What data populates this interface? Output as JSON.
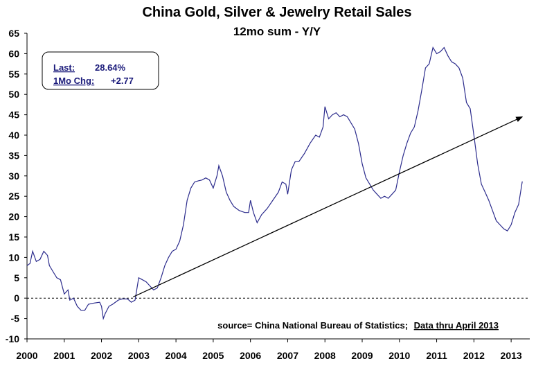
{
  "chart_data": {
    "type": "line",
    "title": "China Gold, Silver & Jewelry Retail Sales",
    "subtitle": "12mo sum - Y/Y",
    "xlabel": "",
    "ylabel": "",
    "xlim": [
      2000,
      2013.5
    ],
    "ylim": [
      -10,
      65
    ],
    "y_ticks": [
      -10,
      -5,
      0,
      5,
      10,
      15,
      20,
      25,
      30,
      35,
      40,
      45,
      50,
      55,
      60,
      65
    ],
    "x_ticks": [
      "2000",
      "2001",
      "2002",
      "2003",
      "2004",
      "2005",
      "2006",
      "2007",
      "2008",
      "2009",
      "2010",
      "2011",
      "2012",
      "2013"
    ],
    "grid": false,
    "reference_line": {
      "y": 0,
      "style": "dashed"
    },
    "trend_arrow": {
      "from": [
        2002.85,
        0.3
      ],
      "to": [
        2013.3,
        44.5
      ]
    },
    "series": [
      {
        "color": "#2b2b8c",
        "points": [
          [
            2000.0,
            8
          ],
          [
            2000.08,
            8.5
          ],
          [
            2000.15,
            11.5
          ],
          [
            2000.25,
            9
          ],
          [
            2000.35,
            9.5
          ],
          [
            2000.45,
            11.5
          ],
          [
            2000.55,
            10.5
          ],
          [
            2000.6,
            8
          ],
          [
            2000.7,
            6.5
          ],
          [
            2000.8,
            5
          ],
          [
            2000.9,
            4.5
          ],
          [
            2001.0,
            1
          ],
          [
            2001.1,
            2
          ],
          [
            2001.15,
            -0.5
          ],
          [
            2001.25,
            0
          ],
          [
            2001.35,
            -2
          ],
          [
            2001.45,
            -3
          ],
          [
            2001.55,
            -3
          ],
          [
            2001.65,
            -1.5
          ],
          [
            2001.8,
            -1.2
          ],
          [
            2001.95,
            -1
          ],
          [
            2002.0,
            -2
          ],
          [
            2002.05,
            -5
          ],
          [
            2002.1,
            -3.8
          ],
          [
            2002.2,
            -2
          ],
          [
            2002.3,
            -1.5
          ],
          [
            2002.45,
            -0.5
          ],
          [
            2002.55,
            -0.2
          ],
          [
            2002.7,
            -0.2
          ],
          [
            2002.8,
            -1
          ],
          [
            2002.9,
            -0.5
          ],
          [
            2003.0,
            5
          ],
          [
            2003.1,
            4.5
          ],
          [
            2003.2,
            4
          ],
          [
            2003.3,
            3
          ],
          [
            2003.4,
            2
          ],
          [
            2003.5,
            2.5
          ],
          [
            2003.6,
            5
          ],
          [
            2003.7,
            8
          ],
          [
            2003.8,
            10
          ],
          [
            2003.9,
            11.5
          ],
          [
            2004.0,
            12
          ],
          [
            2004.1,
            14
          ],
          [
            2004.2,
            18
          ],
          [
            2004.3,
            24
          ],
          [
            2004.4,
            27
          ],
          [
            2004.5,
            28.5
          ],
          [
            2004.6,
            28.8
          ],
          [
            2004.7,
            29
          ],
          [
            2004.8,
            29.5
          ],
          [
            2004.9,
            29
          ],
          [
            2005.0,
            27
          ],
          [
            2005.1,
            30
          ],
          [
            2005.15,
            32.5
          ],
          [
            2005.25,
            30
          ],
          [
            2005.35,
            26
          ],
          [
            2005.45,
            24
          ],
          [
            2005.55,
            22.5
          ],
          [
            2005.7,
            21.5
          ],
          [
            2005.85,
            21
          ],
          [
            2005.95,
            21
          ],
          [
            2006.0,
            24
          ],
          [
            2006.08,
            21
          ],
          [
            2006.18,
            18.5
          ],
          [
            2006.3,
            20.5
          ],
          [
            2006.45,
            22
          ],
          [
            2006.6,
            24
          ],
          [
            2006.75,
            26
          ],
          [
            2006.85,
            28.5
          ],
          [
            2006.95,
            28
          ],
          [
            2007.0,
            25.5
          ],
          [
            2007.1,
            31.5
          ],
          [
            2007.2,
            33.5
          ],
          [
            2007.3,
            33.5
          ],
          [
            2007.45,
            35.5
          ],
          [
            2007.6,
            38
          ],
          [
            2007.75,
            40
          ],
          [
            2007.85,
            39.5
          ],
          [
            2007.95,
            42
          ],
          [
            2008.0,
            47
          ],
          [
            2008.1,
            44
          ],
          [
            2008.2,
            45
          ],
          [
            2008.3,
            45.5
          ],
          [
            2008.4,
            44.5
          ],
          [
            2008.5,
            45
          ],
          [
            2008.6,
            44.5
          ],
          [
            2008.7,
            43
          ],
          [
            2008.8,
            41.5
          ],
          [
            2008.9,
            38
          ],
          [
            2009.0,
            33
          ],
          [
            2009.1,
            29.5
          ],
          [
            2009.2,
            28
          ],
          [
            2009.3,
            26.5
          ],
          [
            2009.4,
            25.5
          ],
          [
            2009.5,
            24.5
          ],
          [
            2009.6,
            25
          ],
          [
            2009.7,
            24.5
          ],
          [
            2009.8,
            25.5
          ],
          [
            2009.9,
            26.5
          ],
          [
            2010.0,
            31
          ],
          [
            2010.1,
            35
          ],
          [
            2010.2,
            38
          ],
          [
            2010.3,
            40.5
          ],
          [
            2010.4,
            42
          ],
          [
            2010.5,
            46
          ],
          [
            2010.6,
            51
          ],
          [
            2010.7,
            56.5
          ],
          [
            2010.8,
            57.5
          ],
          [
            2010.9,
            61.5
          ],
          [
            2011.0,
            60
          ],
          [
            2011.1,
            60.5
          ],
          [
            2011.2,
            61.5
          ],
          [
            2011.3,
            59.5
          ],
          [
            2011.4,
            58
          ],
          [
            2011.5,
            57.5
          ],
          [
            2011.6,
            56.5
          ],
          [
            2011.7,
            54
          ],
          [
            2011.8,
            48
          ],
          [
            2011.9,
            46.5
          ],
          [
            2012.0,
            40
          ],
          [
            2012.1,
            33
          ],
          [
            2012.2,
            28
          ],
          [
            2012.3,
            26
          ],
          [
            2012.4,
            24
          ],
          [
            2012.5,
            21.5
          ],
          [
            2012.6,
            19
          ],
          [
            2012.7,
            18
          ],
          [
            2012.8,
            17
          ],
          [
            2012.9,
            16.5
          ],
          [
            2013.0,
            18
          ],
          [
            2013.1,
            21
          ],
          [
            2013.2,
            23
          ],
          [
            2013.3,
            28.64
          ]
        ]
      }
    ],
    "stats_box": {
      "last_label": "Last:",
      "last_value": "28.64%",
      "chg_label": "1Mo Chg:",
      "chg_value": "+2.77"
    },
    "source_note": {
      "prefix": "source= China National Bureau of Statistics;",
      "underlined": "Data thru April 2013"
    }
  }
}
